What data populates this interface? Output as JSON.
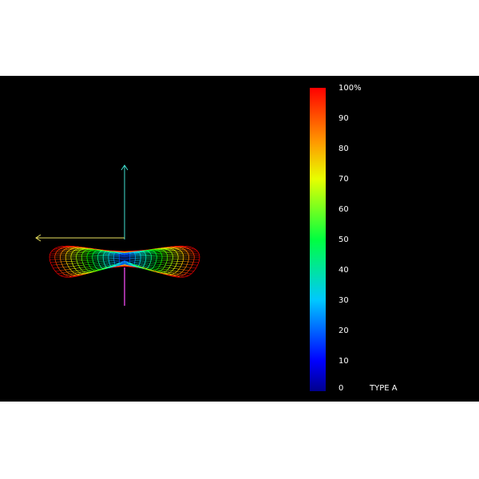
{
  "colorbar": {
    "ticks": [
      0,
      10,
      20,
      30,
      40,
      50,
      60,
      70,
      80,
      90,
      {
        "value": 100,
        "label": "100%"
      }
    ],
    "range": [
      0,
      100
    ],
    "caption": "TYPE A"
  }
}
